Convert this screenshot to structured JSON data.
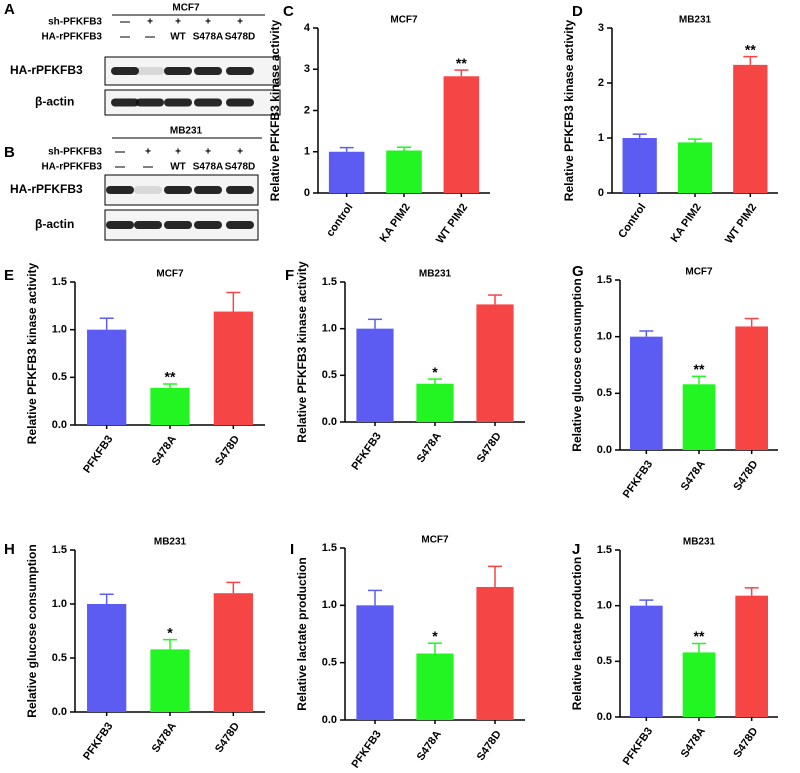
{
  "blots": [
    {
      "panel": "A",
      "title": "MCF7",
      "conditions": [
        {
          "name": "sh-PFKFB3",
          "lanes": [
            "—",
            "+",
            "+",
            "+",
            "+"
          ]
        },
        {
          "name": "HA-rPFKFB3",
          "lanes": [
            "—",
            "—",
            "WT",
            "S478A",
            "S478D"
          ]
        }
      ],
      "bands": [
        "HA-rPFKFB3",
        "β-actin"
      ]
    },
    {
      "panel": "B",
      "title": "MB231",
      "conditions": [
        {
          "name": "sh-PFKFB3",
          "lanes": [
            "—",
            "+",
            "+",
            "+",
            "+"
          ]
        },
        {
          "name": "HA-rPFKFB3",
          "lanes": [
            "—",
            "—",
            "WT",
            "S478A",
            "S478D"
          ]
        }
      ],
      "bands": [
        "HA-rPFKFB3",
        "β-actin"
      ]
    }
  ],
  "chart_data": [
    {
      "type": "bar",
      "panel": "C",
      "title": "MCF7",
      "y_label": "Relative PFKFB3 kinase activity",
      "categories": [
        "control",
        "KA PIM2",
        "WT PIM2"
      ],
      "values": [
        1.0,
        1.03,
        2.83
      ],
      "errors": [
        0.1,
        0.08,
        0.15
      ],
      "significance": [
        null,
        null,
        "**"
      ],
      "colors": [
        "#5c5cf2",
        "#22f522",
        "#f54545"
      ],
      "ylim": [
        0,
        4
      ],
      "yticks": [
        0,
        1,
        2,
        3,
        4
      ]
    },
    {
      "type": "bar",
      "panel": "D",
      "title": "MB231",
      "y_label": "Relative PFKFB3 kinase activity",
      "categories": [
        "Control",
        "KA PIM2",
        "WT PIM2"
      ],
      "values": [
        1.0,
        0.92,
        2.33
      ],
      "errors": [
        0.07,
        0.06,
        0.15
      ],
      "significance": [
        null,
        null,
        "**"
      ],
      "colors": [
        "#5c5cf2",
        "#22f522",
        "#f54545"
      ],
      "ylim": [
        0,
        3
      ],
      "yticks": [
        0,
        1,
        2,
        3
      ]
    },
    {
      "type": "bar",
      "panel": "E",
      "title": "MCF7",
      "y_label": "Relative PFKFB3 kinase activity",
      "categories": [
        "PFKFB3",
        "S478A",
        "S478D"
      ],
      "values": [
        1.0,
        0.39,
        1.19
      ],
      "errors": [
        0.12,
        0.04,
        0.2
      ],
      "significance": [
        null,
        "**",
        null
      ],
      "colors": [
        "#5c5cf2",
        "#22f522",
        "#f54545"
      ],
      "ylim": [
        0,
        1.5
      ],
      "yticks": [
        {
          "value": 0,
          "label": "0.0"
        },
        0.5,
        {
          "value": 1,
          "label": "1.0"
        },
        1.5
      ]
    },
    {
      "type": "bar",
      "panel": "F",
      "title": "MB231",
      "y_label": "Relative PFKFB3 kinase activity",
      "categories": [
        "PFKFB3",
        "S478A",
        "S478D"
      ],
      "values": [
        1.0,
        0.41,
        1.26
      ],
      "errors": [
        0.1,
        0.05,
        0.1
      ],
      "significance": [
        null,
        "*",
        null
      ],
      "colors": [
        "#5c5cf2",
        "#22f522",
        "#f54545"
      ],
      "ylim": [
        0,
        1.5
      ],
      "yticks": [
        {
          "value": 0,
          "label": "0.0"
        },
        0.5,
        {
          "value": 1,
          "label": "1.0"
        },
        1.5
      ]
    },
    {
      "type": "bar",
      "panel": "G",
      "title": "MCF7",
      "y_label": "Relative glucose consumption",
      "categories": [
        "PFKFB3",
        "S478A",
        "S478D"
      ],
      "values": [
        1.0,
        0.58,
        1.09
      ],
      "errors": [
        0.05,
        0.07,
        0.07
      ],
      "significance": [
        null,
        "**",
        null
      ],
      "colors": [
        "#5c5cf2",
        "#22f522",
        "#f54545"
      ],
      "ylim": [
        0,
        1.5
      ],
      "yticks": [
        {
          "value": 0,
          "label": "0.0"
        },
        0.5,
        {
          "value": 1,
          "label": "1.0"
        },
        1.5
      ]
    },
    {
      "type": "bar",
      "panel": "H",
      "title": "MB231",
      "y_label": "Relative glucose consumption",
      "categories": [
        "PFKFB3",
        "S478A",
        "S478D"
      ],
      "values": [
        1.0,
        0.58,
        1.1
      ],
      "errors": [
        0.09,
        0.09,
        0.1
      ],
      "significance": [
        null,
        "*",
        null
      ],
      "colors": [
        "#5c5cf2",
        "#22f522",
        "#f54545"
      ],
      "ylim": [
        0,
        1.5
      ],
      "yticks": [
        {
          "value": 0,
          "label": "0.0"
        },
        0.5,
        {
          "value": 1,
          "label": "1.0"
        },
        1.5
      ]
    },
    {
      "type": "bar",
      "panel": "I",
      "title": "MCF7",
      "y_label": "Relative lactate production",
      "categories": [
        "PFKFB3",
        "S478A",
        "S478D"
      ],
      "values": [
        1.0,
        0.58,
        1.16
      ],
      "errors": [
        0.13,
        0.09,
        0.18
      ],
      "significance": [
        null,
        "*",
        null
      ],
      "colors": [
        "#5c5cf2",
        "#22f522",
        "#f54545"
      ],
      "ylim": [
        0,
        1.5
      ],
      "yticks": [
        {
          "value": 0,
          "label": "0.0"
        },
        0.5,
        {
          "value": 1,
          "label": "1.0"
        },
        1.5
      ]
    },
    {
      "type": "bar",
      "panel": "J",
      "title": "MB231",
      "y_label": "Relative lactate production",
      "categories": [
        "PFKFB3",
        "S478A",
        "S478D"
      ],
      "values": [
        1.0,
        0.58,
        1.09
      ],
      "errors": [
        0.05,
        0.08,
        0.07
      ],
      "significance": [
        null,
        "**",
        null
      ],
      "colors": [
        "#5c5cf2",
        "#22f522",
        "#f54545"
      ],
      "ylim": [
        0,
        1.5
      ],
      "yticks": [
        {
          "value": 0,
          "label": "0.0"
        },
        0.5,
        {
          "value": 1,
          "label": "1.0"
        },
        1.5
      ]
    }
  ]
}
